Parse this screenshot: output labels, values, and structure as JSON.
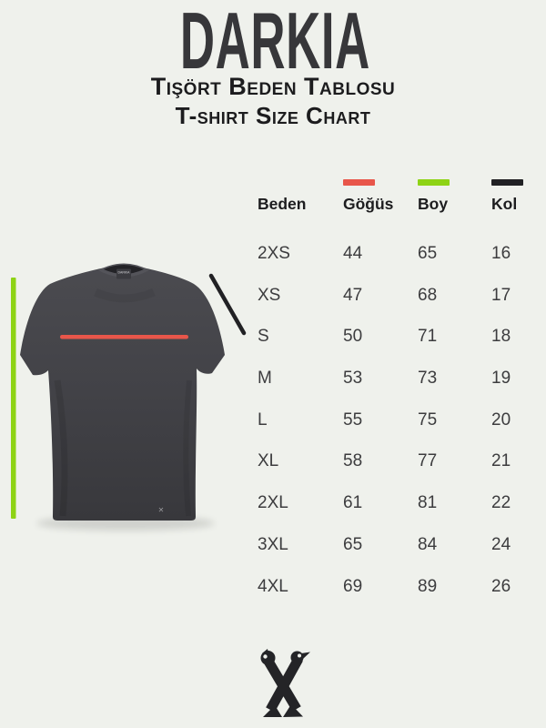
{
  "brand": {
    "logo": "DARKIA",
    "subtitle_tr": "Tişört Beden Tablosu",
    "subtitle_en": "T-shirt Size Chart"
  },
  "colors": {
    "background": "#eff1ec",
    "logo_text": "#37373a",
    "chest_marker": "#e8564a",
    "height_marker": "#8ed315",
    "sleeve_marker": "#212124",
    "shirt_body": "#424246",
    "x_logo": "#242427"
  },
  "table": {
    "columns": [
      {
        "key": "beden",
        "label": "Beden",
        "marker": null
      },
      {
        "key": "gogus",
        "label": "Göğüs",
        "marker": "#e8564a"
      },
      {
        "key": "boy",
        "label": "Boy",
        "marker": "#8ed315"
      },
      {
        "key": "kol",
        "label": "Kol",
        "marker": "#212124"
      }
    ],
    "rows": [
      {
        "beden": "2XS",
        "gogus": "44",
        "boy": "65",
        "kol": "16"
      },
      {
        "beden": "XS",
        "gogus": "47",
        "boy": "68",
        "kol": "17"
      },
      {
        "beden": "S",
        "gogus": "50",
        "boy": "71",
        "kol": "18"
      },
      {
        "beden": "M",
        "gogus": "53",
        "boy": "73",
        "kol": "19"
      },
      {
        "beden": "L",
        "gogus": "55",
        "boy": "75",
        "kol": "20"
      },
      {
        "beden": "XL",
        "gogus": "58",
        "boy": "77",
        "kol": "21"
      },
      {
        "beden": "2XL",
        "gogus": "61",
        "boy": "81",
        "kol": "22"
      },
      {
        "beden": "3XL",
        "gogus": "65",
        "boy": "84",
        "kol": "24"
      },
      {
        "beden": "4XL",
        "gogus": "69",
        "boy": "89",
        "kol": "26"
      }
    ]
  },
  "shirt": {
    "collar_label": "DARKIA",
    "hem_logo": "✕"
  },
  "chart_data": {
    "type": "table",
    "title": "Tişört Beden Tablosu / T-shirt Size Chart",
    "categories": [
      "2XS",
      "XS",
      "S",
      "M",
      "L",
      "XL",
      "2XL",
      "3XL",
      "4XL"
    ],
    "series": [
      {
        "name": "Göğüs",
        "color": "#e8564a",
        "values": [
          44,
          47,
          50,
          53,
          55,
          58,
          61,
          65,
          69
        ]
      },
      {
        "name": "Boy",
        "color": "#8ed315",
        "values": [
          65,
          68,
          71,
          73,
          75,
          77,
          81,
          84,
          89
        ]
      },
      {
        "name": "Kol",
        "color": "#212124",
        "values": [
          16,
          17,
          18,
          19,
          20,
          21,
          22,
          24,
          26
        ]
      }
    ],
    "legend_position": "table-header",
    "grid": false
  }
}
